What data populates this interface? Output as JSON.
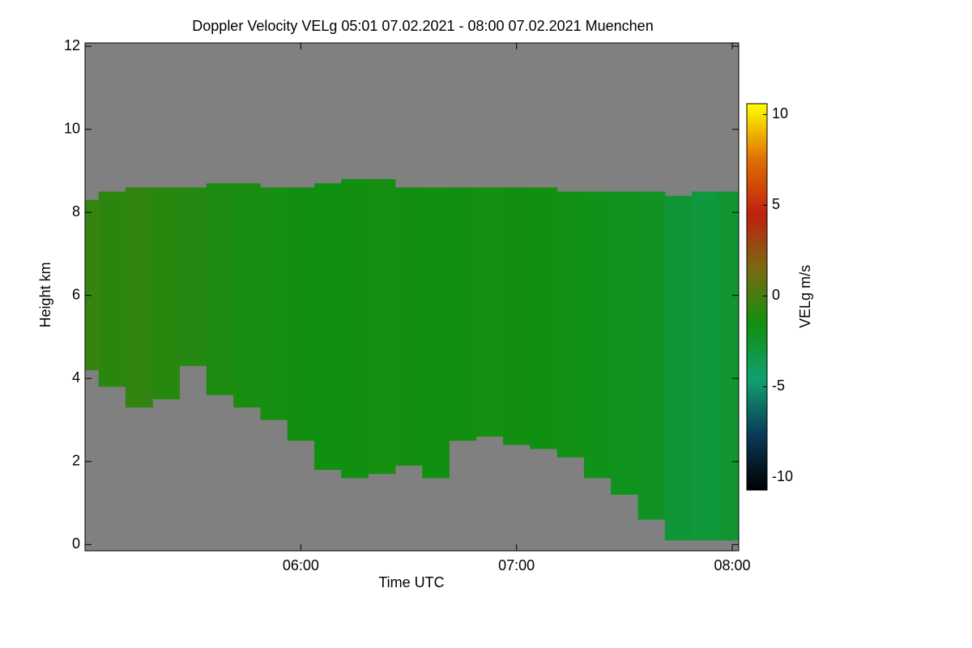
{
  "chart_data": {
    "type": "heatmap",
    "title": "Doppler Velocity VELg   05:01 07.02.2021 - 08:00 07.02.2021 Muenchen",
    "x_label": "Time UTC",
    "y_label": "Height km",
    "colorbar_label": "VELg m/s",
    "xlim": [
      5.0,
      8.03
    ],
    "xticks": [
      {
        "value": 6,
        "label": "06:00"
      },
      {
        "value": 7,
        "label": "07:00"
      },
      {
        "value": 8,
        "label": "08:00"
      }
    ],
    "ylim": [
      -0.15,
      12.08
    ],
    "yticks": [
      0,
      2,
      4,
      6,
      8,
      10,
      12
    ],
    "clim": [
      -10.7,
      10.6
    ],
    "colorbar_ticks": [
      -10,
      -5,
      0,
      5,
      10
    ],
    "colormap": [
      "#000000",
      "#0a3a5a",
      "#10a070",
      "#109010",
      "#7a6a10",
      "#c02010",
      "#e07000",
      "#ffff00"
    ],
    "background": "#808080",
    "x": [
      5.0,
      5.125,
      5.25,
      5.375,
      5.5,
      5.625,
      5.75,
      5.875,
      6.0,
      6.125,
      6.25,
      6.375,
      6.5,
      6.625,
      6.75,
      6.875,
      7.0,
      7.125,
      7.25,
      7.375,
      7.5,
      7.625,
      7.75,
      7.875,
      8.0
    ],
    "cloud_top": [
      8.3,
      8.5,
      8.6,
      8.6,
      8.6,
      8.7,
      8.7,
      8.6,
      8.6,
      8.7,
      8.8,
      8.8,
      8.6,
      8.6,
      8.6,
      8.6,
      8.6,
      8.6,
      8.5,
      8.5,
      8.5,
      8.5,
      8.4,
      8.5,
      8.5
    ],
    "cloud_base": [
      4.2,
      3.8,
      3.3,
      3.5,
      4.3,
      3.6,
      3.3,
      3.0,
      2.5,
      1.8,
      1.6,
      1.7,
      1.9,
      1.6,
      2.5,
      2.6,
      2.4,
      2.3,
      2.1,
      1.6,
      1.2,
      0.6,
      0.1,
      0.1,
      0.1
    ],
    "velocity": [
      -0.5,
      -0.8,
      -0.6,
      -0.9,
      -1.0,
      -1.2,
      -1.3,
      -1.4,
      -1.5,
      -1.6,
      -1.5,
      -1.4,
      -1.5,
      -1.6,
      -1.5,
      -1.4,
      -1.5,
      -1.6,
      -1.7,
      -1.8,
      -2.0,
      -2.2,
      -2.8,
      -3.0,
      -2.6
    ]
  }
}
